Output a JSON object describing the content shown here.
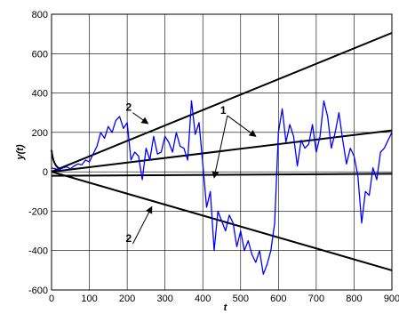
{
  "chart_data": {
    "type": "line",
    "ylabel": "y(t)",
    "xlabel": "t",
    "xlim": [
      0,
      900
    ],
    "ylim": [
      -600,
      800
    ],
    "x_ticks": [
      0,
      100,
      200,
      300,
      400,
      500,
      600,
      700,
      800,
      900
    ],
    "y_ticks": [
      -600,
      -400,
      -200,
      0,
      200,
      400,
      600,
      800
    ],
    "grid": true,
    "colors": {
      "trajectory": "#0000ff",
      "reference": "#000000",
      "grid": "#000000"
    },
    "reference_lines": [
      {
        "label": "2",
        "points": [
          [
            0,
            0
          ],
          [
            900,
            705
          ]
        ]
      },
      {
        "label": "1",
        "points": [
          [
            0,
            0
          ],
          [
            900,
            210
          ]
        ]
      },
      {
        "label": "1",
        "points": [
          [
            0,
            -20
          ],
          [
            900,
            -10
          ]
        ]
      },
      {
        "label": "2",
        "points": [
          [
            0,
            0
          ],
          [
            900,
            -500
          ]
        ]
      }
    ],
    "series": [
      {
        "x": [
          0,
          10,
          20,
          30,
          40,
          50,
          60,
          70,
          80,
          90,
          100,
          110,
          120,
          130,
          140,
          150,
          160,
          170,
          180,
          190,
          200,
          210,
          220,
          230,
          240,
          250,
          260,
          270,
          280,
          290,
          300,
          310,
          320,
          330,
          340,
          350,
          360,
          370,
          380,
          390,
          400,
          410,
          420,
          430,
          440,
          450,
          460,
          470,
          480,
          490,
          500,
          510,
          520,
          530,
          540,
          550,
          560,
          570,
          580,
          590,
          600,
          610,
          620,
          630,
          640,
          650,
          660,
          670,
          680,
          690,
          700,
          710,
          720,
          730,
          740,
          750,
          760,
          770,
          780,
          790,
          800,
          810,
          820,
          830,
          840,
          850,
          860,
          870,
          880,
          890,
          900
        ],
        "values": [
          20,
          15,
          10,
          20,
          25,
          15,
          30,
          40,
          35,
          60,
          50,
          90,
          130,
          200,
          170,
          230,
          200,
          260,
          280,
          220,
          250,
          60,
          100,
          80,
          -40,
          120,
          60,
          180,
          90,
          100,
          180,
          150,
          100,
          200,
          130,
          120,
          60,
          360,
          190,
          250,
          40,
          -180,
          -100,
          -400,
          -200,
          -250,
          -300,
          -220,
          -260,
          -380,
          -300,
          -400,
          -350,
          -420,
          -460,
          -400,
          -520,
          -470,
          -400,
          -260,
          200,
          320,
          150,
          240,
          180,
          30,
          160,
          120,
          140,
          240,
          100,
          180,
          360,
          280,
          120,
          200,
          300,
          160,
          40,
          120,
          80,
          -20,
          -260,
          -100,
          -120,
          20,
          -40,
          100,
          120,
          160,
          200
        ]
      }
    ],
    "annotations": [
      {
        "text": "2",
        "x": 215,
        "y": 300,
        "point_to": [
          255,
          245
        ]
      },
      {
        "text": "1",
        "x": 465,
        "y": 285,
        "point_to": [
          540,
          180
        ]
      },
      {
        "text": "1",
        "x": 465,
        "y": 285,
        "point_to": [
          430,
          -30
        ]
      },
      {
        "text": "2",
        "x": 215,
        "y": -365,
        "point_to": [
          265,
          -178
        ]
      }
    ]
  }
}
